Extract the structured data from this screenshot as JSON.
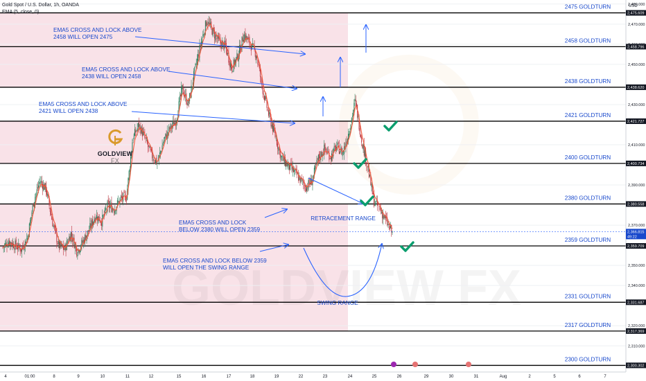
{
  "header": {
    "symbol": "Gold Spot / U.S. Dollar, 1h, OANDA",
    "indicator": "EMA (5, close, 0)"
  },
  "currency": "USD",
  "logo": {
    "brand": "GOLDVIEW",
    "suffix": "FX",
    "watermark": "GOLDVIEW FX"
  },
  "colors": {
    "accent_blue": "#2862ff",
    "level_label": "#1848cc",
    "zone_pink": "#f8dde4",
    "ema": "#f1563a",
    "check": "#0b9e6e",
    "candle_up": "#2a7d5a",
    "candle_down": "#b8323c",
    "logo_gold": "#d99a2b"
  },
  "chart_data": {
    "type": "line",
    "symbol": "Gold Spot / U.S. Dollar",
    "timeframe": "1h",
    "ylim": [
      2297,
      2482
    ],
    "y_ticks": [
      2310,
      2320,
      2340,
      2350,
      2370,
      2390,
      2410,
      2430,
      2450,
      2460,
      2470,
      2480
    ],
    "x_tick_labels": [
      "4",
      "01:00",
      "8",
      "9",
      "10",
      "11",
      "12",
      "15",
      "16",
      "17",
      "18",
      "19",
      "22",
      "23",
      "24",
      "25",
      "26",
      "29",
      "30",
      "31",
      "Aug",
      "2",
      "5",
      "6",
      "7"
    ],
    "series": [
      {
        "values": [
          2359,
          2362,
          2360,
          2358,
          2364,
          2382,
          2392,
          2388,
          2372,
          2360,
          2358,
          2366,
          2357,
          2362,
          2368,
          2375,
          2372,
          2380,
          2378,
          2383,
          2384,
          2413,
          2420,
          2413,
          2405,
          2401,
          2412,
          2418,
          2422,
          2438,
          2430,
          2446,
          2460,
          2472,
          2466,
          2461,
          2459,
          2448,
          2454,
          2465,
          2460,
          2455,
          2438,
          2425,
          2415,
          2404,
          2400,
          2397,
          2393,
          2389,
          2392,
          2403,
          2408,
          2404,
          2409,
          2406,
          2417,
          2432,
          2413,
          2399,
          2382,
          2378,
          2372,
          2366
        ]
      }
    ],
    "levels": [
      {
        "value": 2475.609,
        "label": "2475 GOLDTURN",
        "price": "2,475.609"
      },
      {
        "value": 2458.796,
        "label": "2458 GOLDTURN",
        "price": "2,458.796"
      },
      {
        "value": 2438.62,
        "label": "2438 GOLDTURN",
        "price": "2,438.620"
      },
      {
        "value": 2421.727,
        "label": "2421 GOLDTURN",
        "price": "2,421.727"
      },
      {
        "value": 2400.734,
        "label": "2400 GOLDTURN",
        "price": "2,400.734"
      },
      {
        "value": 2380.558,
        "label": "2380 GOLDTURN",
        "price": "2,380.558"
      },
      {
        "value": 2359.709,
        "label": "2359 GOLDTURN",
        "price": "2,359.709"
      },
      {
        "value": 2331.687,
        "label": "2331 GOLDTURN",
        "price": "2,331.687"
      },
      {
        "value": 2317.369,
        "label": "2317 GOLDTURN",
        "price": "2,317.369"
      },
      {
        "value": 2300.302,
        "label": "2300 GOLDTURN",
        "price": "2,300.302"
      }
    ],
    "current_price": "2,366.815",
    "countdown": "49:22",
    "annotations": [
      {
        "lines": [
          "EMA5 CROSS AND LOCK ABOVE",
          "2458 WILL OPEN 2475"
        ]
      },
      {
        "lines": [
          "EMA5 CROSS AND LOCK ABOVE",
          "2438 WILL OPEN 2458"
        ]
      },
      {
        "lines": [
          "EMA5 CROSS AND LOCK ABOVE",
          "2421 WILL OPEN 2438"
        ]
      },
      {
        "lines": [
          "EMA5 CROSS AND LOCK",
          "BELOW 2380 WILL OPEN 2359"
        ]
      },
      {
        "lines": [
          "EMA5 CROSS AND LOCK BELOW 2359",
          "WILL OPEN THE SWING RANGE"
        ]
      },
      {
        "lines": [
          "RETRACEMENT RANGE"
        ]
      },
      {
        "lines": [
          "SWING RANGE"
        ]
      }
    ]
  }
}
